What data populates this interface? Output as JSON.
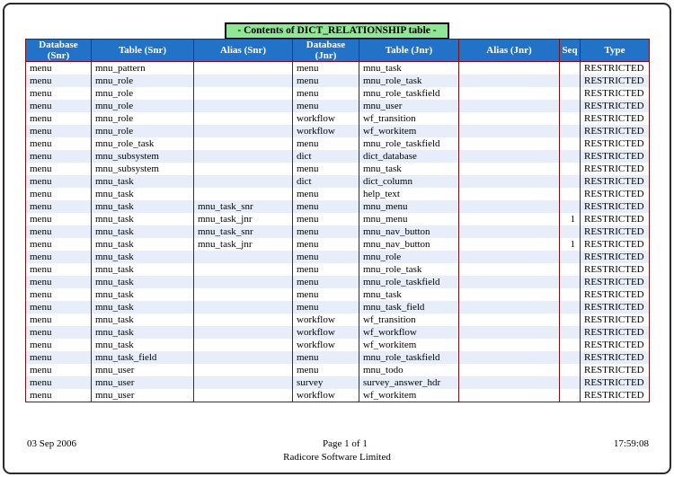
{
  "title": "- Contents of DICT_RELATIONSHIP table -",
  "colors": {
    "header_bg": "#2273C8",
    "header_text": "#FFFFFF",
    "title_bg": "#8FE794",
    "row_alt_bg": "#E7EEFA",
    "grid_border": "#7E1113"
  },
  "table": {
    "columns": [
      "Database (Snr)",
      "Table (Snr)",
      "Alias (Snr)",
      "Database (Jnr)",
      "Table (Jnr)",
      "Alias (Jnr)",
      "Seq",
      "Type"
    ],
    "rows": [
      [
        "menu",
        "mnu_pattern",
        "",
        "menu",
        "mnu_task",
        "",
        "",
        "RESTRICTED"
      ],
      [
        "menu",
        "mnu_role",
        "",
        "menu",
        "mnu_role_task",
        "",
        "",
        "RESTRICTED"
      ],
      [
        "menu",
        "mnu_role",
        "",
        "menu",
        "mnu_role_taskfield",
        "",
        "",
        "RESTRICTED"
      ],
      [
        "menu",
        "mnu_role",
        "",
        "menu",
        "mnu_user",
        "",
        "",
        "RESTRICTED"
      ],
      [
        "menu",
        "mnu_role",
        "",
        "workflow",
        "wf_transition",
        "",
        "",
        "RESTRICTED"
      ],
      [
        "menu",
        "mnu_role",
        "",
        "workflow",
        "wf_workitem",
        "",
        "",
        "RESTRICTED"
      ],
      [
        "menu",
        "mnu_role_task",
        "",
        "menu",
        "mnu_role_taskfield",
        "",
        "",
        "RESTRICTED"
      ],
      [
        "menu",
        "mnu_subsystem",
        "",
        "dict",
        "dict_database",
        "",
        "",
        "RESTRICTED"
      ],
      [
        "menu",
        "mnu_subsystem",
        "",
        "menu",
        "mnu_task",
        "",
        "",
        "RESTRICTED"
      ],
      [
        "menu",
        "mnu_task",
        "",
        "dict",
        "dict_column",
        "",
        "",
        "RESTRICTED"
      ],
      [
        "menu",
        "mnu_task",
        "",
        "menu",
        "help_text",
        "",
        "",
        "RESTRICTED"
      ],
      [
        "menu",
        "mnu_task",
        "mnu_task_snr",
        "menu",
        "mnu_menu",
        "",
        "",
        "RESTRICTED"
      ],
      [
        "menu",
        "mnu_task",
        "mnu_task_jnr",
        "menu",
        "mnu_menu",
        "",
        "1",
        "RESTRICTED"
      ],
      [
        "menu",
        "mnu_task",
        "mnu_task_snr",
        "menu",
        "mnu_nav_button",
        "",
        "",
        "RESTRICTED"
      ],
      [
        "menu",
        "mnu_task",
        "mnu_task_jnr",
        "menu",
        "mnu_nav_button",
        "",
        "1",
        "RESTRICTED"
      ],
      [
        "menu",
        "mnu_task",
        "",
        "menu",
        "mnu_role",
        "",
        "",
        "RESTRICTED"
      ],
      [
        "menu",
        "mnu_task",
        "",
        "menu",
        "mnu_role_task",
        "",
        "",
        "RESTRICTED"
      ],
      [
        "menu",
        "mnu_task",
        "",
        "menu",
        "mnu_role_taskfield",
        "",
        "",
        "RESTRICTED"
      ],
      [
        "menu",
        "mnu_task",
        "",
        "menu",
        "mnu_task",
        "",
        "",
        "RESTRICTED"
      ],
      [
        "menu",
        "mnu_task",
        "",
        "menu",
        "mnu_task_field",
        "",
        "",
        "RESTRICTED"
      ],
      [
        "menu",
        "mnu_task",
        "",
        "workflow",
        "wf_transition",
        "",
        "",
        "RESTRICTED"
      ],
      [
        "menu",
        "mnu_task",
        "",
        "workflow",
        "wf_workflow",
        "",
        "",
        "RESTRICTED"
      ],
      [
        "menu",
        "mnu_task",
        "",
        "workflow",
        "wf_workitem",
        "",
        "",
        "RESTRICTED"
      ],
      [
        "menu",
        "mnu_task_field",
        "",
        "menu",
        "mnu_role_taskfield",
        "",
        "",
        "RESTRICTED"
      ],
      [
        "menu",
        "mnu_user",
        "",
        "menu",
        "mnu_todo",
        "",
        "",
        "RESTRICTED"
      ],
      [
        "menu",
        "mnu_user",
        "",
        "survey",
        "survey_answer_hdr",
        "",
        "",
        "RESTRICTED"
      ],
      [
        "menu",
        "mnu_user",
        "",
        "workflow",
        "wf_workitem",
        "",
        "",
        "RESTRICTED"
      ]
    ]
  },
  "footer": {
    "date": "03 Sep 2006",
    "page_number": "Page 1 of 1",
    "time": "17:59:08",
    "company": "Radicore Software Limited"
  }
}
